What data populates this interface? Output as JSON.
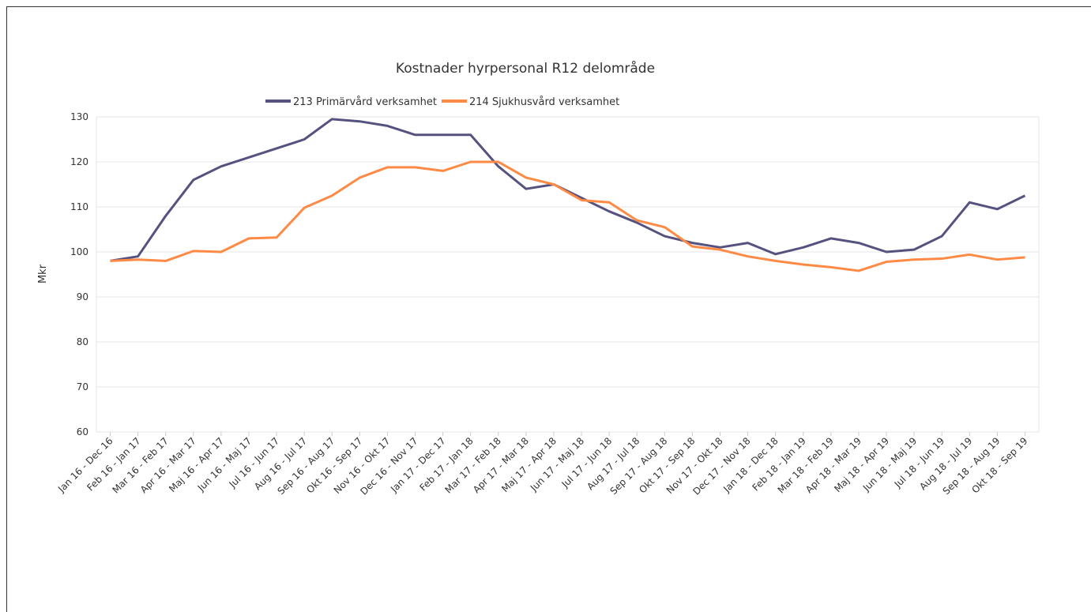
{
  "chart_data": {
    "type": "line",
    "title": "Kostnader hyrpersonal R12 delområde",
    "y_label": "Mkr",
    "categories": [
      "Jan 16 - Dec 16",
      "Feb 16 - Jan 17",
      "Mar 16 - Feb 17",
      "Apr 16 - Mar 17",
      "Maj 16 - Apr 17",
      "Jun 16 - Maj 17",
      "Jul 16 - Jun 17",
      "Aug 16 - Jul 17",
      "Sep 16 - Aug 17",
      "Okt 16 - Sep 17",
      "Nov 16 - Okt 17",
      "Dec 16 - Nov 17",
      "Jan 17 - Dec 17",
      "Feb 17 - Jan 18",
      "Mar 17 - Feb 18",
      "Apr 17 - Mar 18",
      "Maj 17 - Apr 18",
      "Jun 17 - Maj 18",
      "Jul 17 - Jun 18",
      "Aug 17 - Jul 18",
      "Sep 17 - Aug 18",
      "Okt 17 - Sep 18",
      "Nov 17 - Okt 18",
      "Dec 17 - Nov 18",
      "Jan 18 - Dec 18",
      "Feb 18 - Jan 19",
      "Mar 18 - Feb 19",
      "Apr 18 - Mar 19",
      "Maj 18 - Apr 19",
      "Jun 18 - Maj 19",
      "Jul 18 - Jun 19",
      "Aug 18 - Jul 19",
      "Sep 18 - Aug 19",
      "Okt 18 - Sep 19"
    ],
    "series": [
      {
        "name": "213 Primärvård verksamhet",
        "color": "#55527f",
        "values": [
          98,
          99,
          108,
          116,
          119,
          121,
          123,
          125,
          129.5,
          129,
          128,
          126,
          126,
          126,
          119,
          114,
          115,
          112,
          109,
          106.5,
          103.5,
          102,
          101,
          102,
          99.5,
          101,
          103,
          102,
          100,
          100.5,
          103.5,
          111,
          109.5,
          112.5
        ]
      },
      {
        "name": "214 Sjukhusvård verksamhet",
        "color": "#ff8a45",
        "values": [
          98,
          98.3,
          98,
          100.2,
          100,
          103,
          103.2,
          109.8,
          112.5,
          116.5,
          118.8,
          118.8,
          118,
          120,
          120,
          116.5,
          115,
          111.5,
          111,
          107,
          105.5,
          101.2,
          100.5,
          99,
          98,
          97.2,
          96.6,
          95.8,
          97.8,
          98.3,
          98.5,
          99.4,
          98.3,
          98.8
        ]
      }
    ],
    "ylim": [
      60,
      130
    ],
    "yticks": [
      60,
      70,
      80,
      90,
      100,
      110,
      120,
      130
    ],
    "grid": true
  }
}
